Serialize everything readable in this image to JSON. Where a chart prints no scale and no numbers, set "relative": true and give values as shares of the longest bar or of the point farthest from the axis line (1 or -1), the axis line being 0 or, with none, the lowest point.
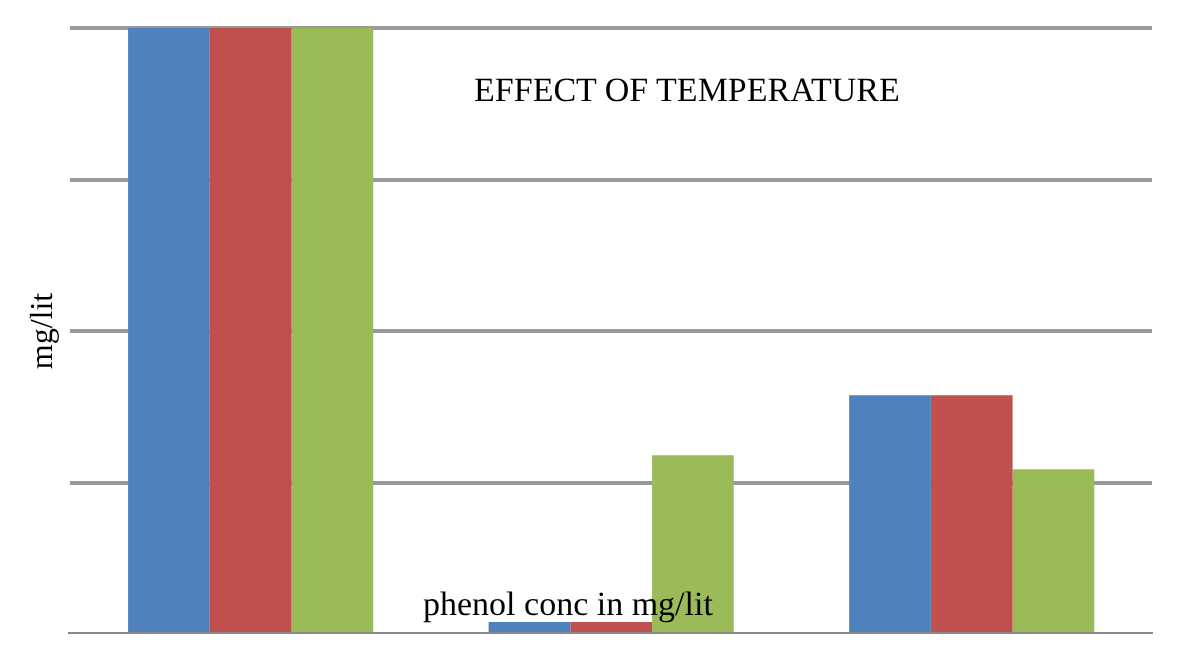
{
  "chart_data": {
    "type": "bar",
    "title": "EFFECT OF TEMPERATURE",
    "xlabel": "phenol conc in mg/lit",
    "ylabel": "mg/lit",
    "categories": [
      null,
      null,
      null
    ],
    "relative": true,
    "grid": "y",
    "legend": false,
    "series": [
      {
        "color": "#4f81bd",
        "values": [
          1,
          0.02,
          0.394
        ]
      },
      {
        "color": "#c0504d",
        "values": [
          1,
          0.02,
          0.394
        ]
      },
      {
        "color": "#9bbb59",
        "values": [
          1,
          0.295,
          0.272
        ]
      }
    ]
  }
}
